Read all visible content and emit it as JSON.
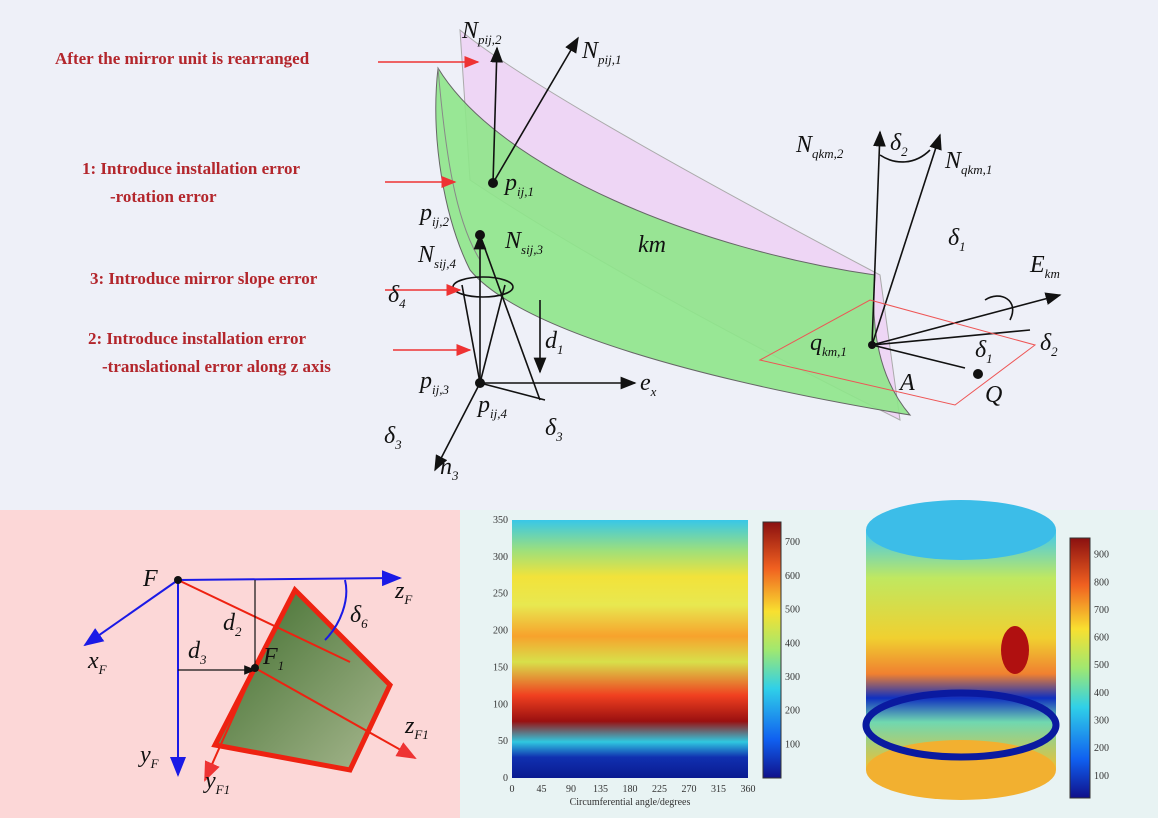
{
  "top": {
    "annotations": [
      "After the mirror unit is rearranged",
      "1: Introduce installation error",
      "-rotation error",
      "3: Introduce mirror slope error",
      "2: Introduce installation error",
      "-translational error along z axis"
    ],
    "labels": [
      {
        "text": "N",
        "sub": "pij,2"
      },
      {
        "text": "N",
        "sub": "pij,1"
      },
      {
        "text": "p",
        "sub": "ij,1"
      },
      {
        "text": "p",
        "sub": "ij,2"
      },
      {
        "text": "N",
        "sub": "sij,3"
      },
      {
        "text": "N",
        "sub": "sij,4"
      },
      {
        "text": "δ",
        "sub": "4"
      },
      {
        "text": "d",
        "sub": "1"
      },
      {
        "text": "p",
        "sub": "ij,3"
      },
      {
        "text": "p",
        "sub": "ij,4"
      },
      {
        "text": "e",
        "sub": "x"
      },
      {
        "text": "δ",
        "sub": "3"
      },
      {
        "text": "δ",
        "sub": "3"
      },
      {
        "text": "n",
        "sub": "3"
      },
      {
        "text": "km"
      },
      {
        "text": "N",
        "sub": "qkm,2"
      },
      {
        "text": "δ",
        "sub": "2"
      },
      {
        "text": "N",
        "sub": "qkm,1"
      },
      {
        "text": "δ",
        "sub": "1"
      },
      {
        "text": "E",
        "sub": "km"
      },
      {
        "text": "q",
        "sub": "km,1"
      },
      {
        "text": "δ",
        "sub": "1"
      },
      {
        "text": "δ",
        "sub": "2"
      },
      {
        "text": "A"
      },
      {
        "text": "Q"
      }
    ]
  },
  "left_panel": {
    "labels": [
      {
        "text": "F"
      },
      {
        "text": "z",
        "sub": "F"
      },
      {
        "text": "x",
        "sub": "F"
      },
      {
        "text": "d",
        "sub": "2"
      },
      {
        "text": "δ",
        "sub": "6"
      },
      {
        "text": "d",
        "sub": "3"
      },
      {
        "text": "F",
        "sub": "1"
      },
      {
        "text": "z",
        "sub": "F1"
      },
      {
        "text": "y",
        "sub": "F"
      },
      {
        "text": "y",
        "sub": "F1"
      }
    ]
  },
  "heatmap": {
    "x_label": "Circumferential angle/degrees",
    "x_ticks": [
      0,
      45,
      90,
      135,
      180,
      225,
      270,
      315,
      360
    ],
    "y_ticks": [
      0,
      50,
      100,
      150,
      200,
      250,
      300,
      350
    ],
    "colorbar_ticks": [
      100,
      200,
      300,
      400,
      500,
      600,
      700
    ]
  },
  "cylinder": {
    "colorbar_ticks": [
      100,
      200,
      300,
      400,
      500,
      600,
      700,
      800,
      900
    ]
  }
}
